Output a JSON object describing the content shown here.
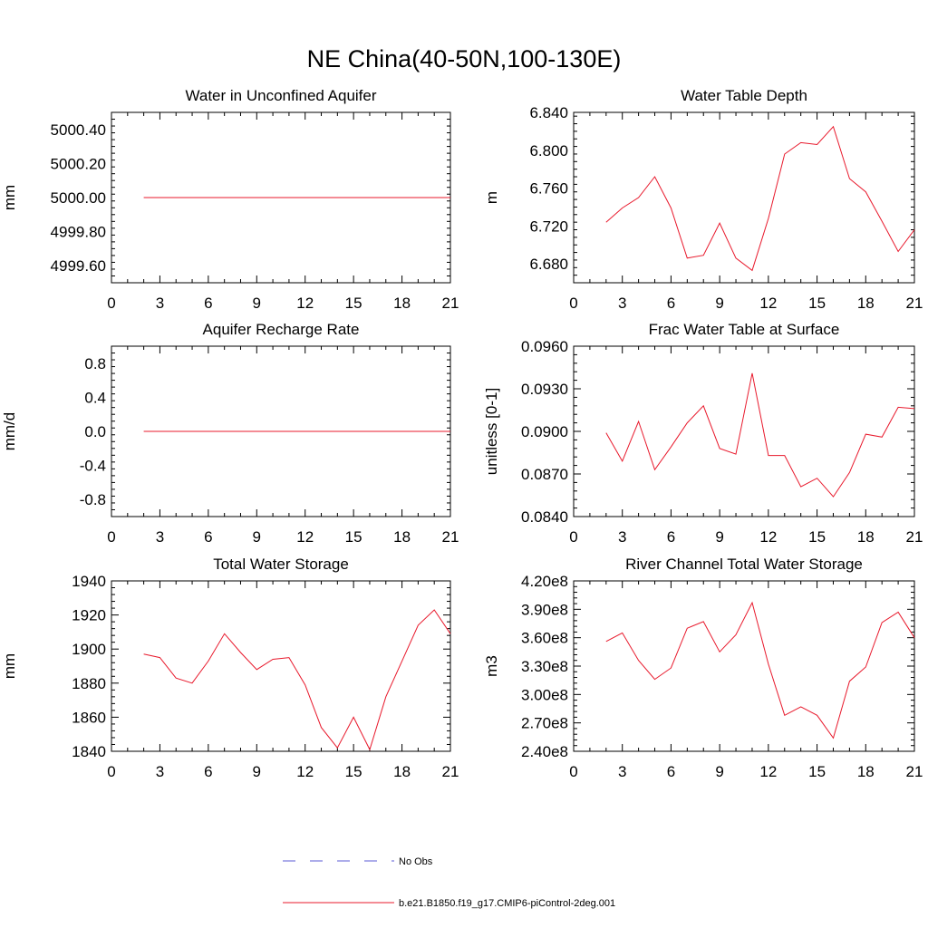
{
  "title": "NE China(40-50N,100-130E)",
  "legend": [
    {
      "label": "No Obs",
      "color": "#5b5bd6",
      "dash": "dashed"
    },
    {
      "label": "b.e21.B1850.f19_g17.CMIP6-piControl-2deg.001",
      "color": "#e8182b",
      "dash": "solid"
    }
  ],
  "chart_data": [
    {
      "type": "line",
      "title": "Water in Unconfined Aquifer",
      "ylabel": "mm",
      "xlim": [
        0,
        21
      ],
      "ylim": [
        4999.5,
        5000.5
      ],
      "xticks": [
        0,
        3,
        6,
        9,
        12,
        15,
        18,
        21
      ],
      "yticks": [
        4999.6,
        4999.8,
        5000.0,
        5000.2,
        5000.4
      ],
      "ytick_labels": [
        "4999.60",
        "4999.80",
        "5000.00",
        "5000.20",
        "5000.40"
      ],
      "x": [
        2,
        3,
        4,
        5,
        6,
        7,
        8,
        9,
        10,
        11,
        12,
        13,
        14,
        15,
        16,
        17,
        18,
        19,
        20,
        21
      ],
      "series": [
        {
          "values": [
            5000,
            5000,
            5000,
            5000,
            5000,
            5000,
            5000,
            5000,
            5000,
            5000,
            5000,
            5000,
            5000,
            5000,
            5000,
            5000,
            5000,
            5000,
            5000,
            5000
          ]
        }
      ]
    },
    {
      "type": "line",
      "title": "Water Table Depth",
      "ylabel": "m",
      "xlim": [
        0,
        21
      ],
      "ylim": [
        6.66,
        6.84
      ],
      "xticks": [
        0,
        3,
        6,
        9,
        12,
        15,
        18,
        21
      ],
      "yticks": [
        6.68,
        6.72,
        6.76,
        6.8,
        6.84
      ],
      "ytick_labels": [
        "6.680",
        "6.720",
        "6.760",
        "6.800",
        "6.840"
      ],
      "x": [
        2,
        3,
        4,
        5,
        6,
        7,
        8,
        9,
        10,
        11,
        12,
        13,
        14,
        15,
        16,
        17,
        18,
        19,
        20,
        21
      ],
      "series": [
        {
          "values": [
            6.724,
            6.739,
            6.75,
            6.772,
            6.739,
            6.686,
            6.689,
            6.723,
            6.686,
            6.673,
            6.728,
            6.796,
            6.808,
            6.806,
            6.825,
            6.77,
            6.756,
            6.725,
            6.693,
            6.716
          ]
        }
      ]
    },
    {
      "type": "line",
      "title": "Aquifer Recharge Rate",
      "ylabel": "mm/d",
      "xlim": [
        0,
        21
      ],
      "ylim": [
        -1.0,
        1.0
      ],
      "xticks": [
        0,
        3,
        6,
        9,
        12,
        15,
        18,
        21
      ],
      "yticks": [
        -0.8,
        -0.4,
        0.0,
        0.4,
        0.8
      ],
      "ytick_labels": [
        "-0.8",
        "-0.4",
        "0.0",
        "0.4",
        "0.8"
      ],
      "x": [
        2,
        3,
        4,
        5,
        6,
        7,
        8,
        9,
        10,
        11,
        12,
        13,
        14,
        15,
        16,
        17,
        18,
        19,
        20,
        21
      ],
      "series": [
        {
          "values": [
            0,
            0,
            0,
            0,
            0,
            0,
            0,
            0,
            0,
            0,
            0,
            0,
            0,
            0,
            0,
            0,
            0,
            0,
            0,
            0
          ]
        }
      ]
    },
    {
      "type": "line",
      "title": "Frac Water Table at Surface",
      "ylabel": "unitless [0-1]",
      "xlim": [
        0,
        21
      ],
      "ylim": [
        0.084,
        0.096
      ],
      "xticks": [
        0,
        3,
        6,
        9,
        12,
        15,
        18,
        21
      ],
      "yticks": [
        0.084,
        0.087,
        0.09,
        0.093,
        0.096
      ],
      "ytick_labels": [
        "0.0840",
        "0.0870",
        "0.0900",
        "0.0930",
        "0.0960"
      ],
      "x": [
        2,
        3,
        4,
        5,
        6,
        7,
        8,
        9,
        10,
        11,
        12,
        13,
        14,
        15,
        16,
        17,
        18,
        19,
        20,
        21
      ],
      "series": [
        {
          "values": [
            0.0899,
            0.0879,
            0.0907,
            0.0873,
            0.0889,
            0.0906,
            0.0918,
            0.0888,
            0.0884,
            0.0941,
            0.0883,
            0.0883,
            0.0861,
            0.0867,
            0.0854,
            0.0871,
            0.0898,
            0.0896,
            0.0917,
            0.0916
          ]
        }
      ]
    },
    {
      "type": "line",
      "title": "Total Water Storage",
      "ylabel": "mm",
      "xlim": [
        0,
        21
      ],
      "ylim": [
        1840,
        1940
      ],
      "xticks": [
        0,
        3,
        6,
        9,
        12,
        15,
        18,
        21
      ],
      "yticks": [
        1840,
        1860,
        1880,
        1900,
        1920,
        1940
      ],
      "ytick_labels": [
        "1840",
        "1860",
        "1880",
        "1900",
        "1920",
        "1940"
      ],
      "x": [
        2,
        3,
        4,
        5,
        6,
        7,
        8,
        9,
        10,
        11,
        12,
        13,
        14,
        15,
        16,
        17,
        18,
        19,
        20,
        21
      ],
      "series": [
        {
          "values": [
            1897,
            1895,
            1883,
            1880,
            1893,
            1909,
            1898,
            1888,
            1894,
            1895,
            1879,
            1854,
            1842,
            1860,
            1841,
            1872,
            1893,
            1914,
            1923,
            1909
          ]
        }
      ]
    },
    {
      "type": "line",
      "title": "River Channel Total Water Storage",
      "ylabel": "m3",
      "xlim": [
        0,
        21
      ],
      "ylim": [
        240000000,
        420000000
      ],
      "xticks": [
        0,
        3,
        6,
        9,
        12,
        15,
        18,
        21
      ],
      "yticks": [
        240000000,
        270000000,
        300000000,
        330000000,
        360000000,
        390000000,
        420000000
      ],
      "ytick_labels": [
        "2.40e8",
        "2.70e8",
        "3.00e8",
        "3.30e8",
        "3.60e8",
        "3.90e8",
        "4.20e8"
      ],
      "x": [
        2,
        3,
        4,
        5,
        6,
        7,
        8,
        9,
        10,
        11,
        12,
        13,
        14,
        15,
        16,
        17,
        18,
        19,
        20,
        21
      ],
      "series": [
        {
          "values": [
            356000000,
            365000000,
            336000000,
            316000000,
            328000000,
            370000000,
            377000000,
            345000000,
            363000000,
            397000000,
            332000000,
            278000000,
            287000000,
            278000000,
            254000000,
            314000000,
            329000000,
            376000000,
            387000000,
            360000000
          ]
        }
      ]
    }
  ]
}
